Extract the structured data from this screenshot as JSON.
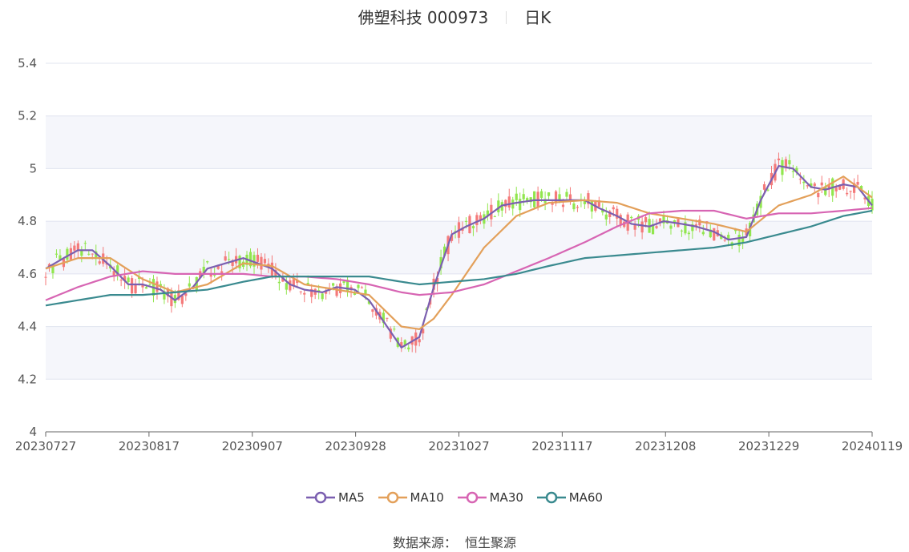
{
  "chart_data": {
    "type": "candlestick",
    "title": "佛塑科技 000973",
    "period_label": "日K",
    "ylim": [
      4,
      5.4
    ],
    "y_ticks": [
      4,
      4.2,
      4.4,
      4.6,
      4.8,
      5,
      5.2,
      5.4
    ],
    "y_tick_labels": [
      "4",
      "4.2",
      "4.4",
      "4.6",
      "4.8",
      "5",
      "5.2",
      "5.4"
    ],
    "x_ticks": [
      "20230727",
      "20230817",
      "20230907",
      "20230928",
      "20231027",
      "20231117",
      "20231208",
      "20231229",
      "20240119"
    ],
    "colors": {
      "up": "#f47a7a",
      "down": "#91e64e",
      "MA5": "#7b5fb0",
      "MA10": "#e3a05a",
      "MA30": "#d765b3",
      "MA60": "#3a8a8f",
      "band": "#f5f6fb",
      "grid": "#e0e4ef"
    },
    "series": [
      {
        "name": "MA5",
        "values": [
          [
            0,
            4.62
          ],
          [
            5,
            4.66
          ],
          [
            9,
            4.69
          ],
          [
            13,
            4.69
          ],
          [
            18,
            4.63
          ],
          [
            23,
            4.56
          ],
          [
            27,
            4.56
          ],
          [
            32,
            4.54
          ],
          [
            36,
            4.5
          ],
          [
            41,
            4.55
          ],
          [
            45,
            4.62
          ],
          [
            50,
            4.64
          ],
          [
            55,
            4.66
          ],
          [
            59,
            4.64
          ],
          [
            63,
            4.62
          ],
          [
            68,
            4.56
          ],
          [
            72,
            4.54
          ],
          [
            77,
            4.53
          ],
          [
            81,
            4.55
          ],
          [
            86,
            4.54
          ],
          [
            90,
            4.5
          ],
          [
            95,
            4.4
          ],
          [
            99,
            4.32
          ],
          [
            104,
            4.36
          ],
          [
            108,
            4.55
          ],
          [
            113,
            4.75
          ],
          [
            117,
            4.78
          ],
          [
            122,
            4.81
          ],
          [
            127,
            4.86
          ],
          [
            131,
            4.87
          ],
          [
            136,
            4.88
          ],
          [
            140,
            4.88
          ],
          [
            145,
            4.88
          ],
          [
            150,
            4.88
          ],
          [
            154,
            4.85
          ],
          [
            159,
            4.82
          ],
          [
            163,
            4.79
          ],
          [
            168,
            4.78
          ],
          [
            172,
            4.8
          ],
          [
            177,
            4.79
          ],
          [
            181,
            4.78
          ],
          [
            186,
            4.76
          ],
          [
            190,
            4.73
          ],
          [
            195,
            4.74
          ],
          [
            199,
            4.88
          ],
          [
            204,
            5.01
          ],
          [
            208,
            5.0
          ],
          [
            213,
            4.93
          ],
          [
            217,
            4.92
          ],
          [
            222,
            4.94
          ],
          [
            226,
            4.93
          ],
          [
            230,
            4.86
          ]
        ]
      },
      {
        "name": "MA10",
        "values": [
          [
            0,
            4.62
          ],
          [
            9,
            4.66
          ],
          [
            18,
            4.66
          ],
          [
            27,
            4.58
          ],
          [
            36,
            4.53
          ],
          [
            45,
            4.56
          ],
          [
            55,
            4.64
          ],
          [
            63,
            4.63
          ],
          [
            72,
            4.56
          ],
          [
            81,
            4.54
          ],
          [
            90,
            4.52
          ],
          [
            99,
            4.4
          ],
          [
            104,
            4.39
          ],
          [
            108,
            4.43
          ],
          [
            113,
            4.52
          ],
          [
            122,
            4.7
          ],
          [
            131,
            4.82
          ],
          [
            140,
            4.87
          ],
          [
            150,
            4.88
          ],
          [
            159,
            4.87
          ],
          [
            168,
            4.83
          ],
          [
            177,
            4.81
          ],
          [
            186,
            4.79
          ],
          [
            195,
            4.76
          ],
          [
            204,
            4.86
          ],
          [
            213,
            4.9
          ],
          [
            222,
            4.97
          ],
          [
            230,
            4.89
          ]
        ]
      },
      {
        "name": "MA30",
        "values": [
          [
            0,
            4.5
          ],
          [
            9,
            4.55
          ],
          [
            18,
            4.59
          ],
          [
            27,
            4.61
          ],
          [
            36,
            4.6
          ],
          [
            45,
            4.6
          ],
          [
            55,
            4.6
          ],
          [
            63,
            4.59
          ],
          [
            72,
            4.59
          ],
          [
            81,
            4.58
          ],
          [
            90,
            4.56
          ],
          [
            99,
            4.53
          ],
          [
            104,
            4.52
          ],
          [
            113,
            4.53
          ],
          [
            122,
            4.56
          ],
          [
            131,
            4.61
          ],
          [
            140,
            4.66
          ],
          [
            150,
            4.72
          ],
          [
            159,
            4.78
          ],
          [
            168,
            4.83
          ],
          [
            177,
            4.84
          ],
          [
            186,
            4.84
          ],
          [
            195,
            4.81
          ],
          [
            204,
            4.83
          ],
          [
            213,
            4.83
          ],
          [
            222,
            4.84
          ],
          [
            230,
            4.85
          ]
        ]
      },
      {
        "name": "MA60",
        "values": [
          [
            0,
            4.48
          ],
          [
            9,
            4.5
          ],
          [
            18,
            4.52
          ],
          [
            27,
            4.52
          ],
          [
            36,
            4.53
          ],
          [
            45,
            4.54
          ],
          [
            55,
            4.57
          ],
          [
            63,
            4.59
          ],
          [
            72,
            4.59
          ],
          [
            81,
            4.59
          ],
          [
            90,
            4.59
          ],
          [
            99,
            4.57
          ],
          [
            104,
            4.56
          ],
          [
            113,
            4.57
          ],
          [
            122,
            4.58
          ],
          [
            131,
            4.6
          ],
          [
            140,
            4.63
          ],
          [
            150,
            4.66
          ],
          [
            159,
            4.67
          ],
          [
            168,
            4.68
          ],
          [
            177,
            4.69
          ],
          [
            186,
            4.7
          ],
          [
            195,
            4.72
          ],
          [
            204,
            4.75
          ],
          [
            213,
            4.78
          ],
          [
            222,
            4.82
          ],
          [
            230,
            4.84
          ]
        ]
      }
    ]
  },
  "legend": {
    "items": [
      "MA5",
      "MA10",
      "MA30",
      "MA60"
    ]
  },
  "source": {
    "label": "数据来源：",
    "value": "恒生聚源"
  }
}
